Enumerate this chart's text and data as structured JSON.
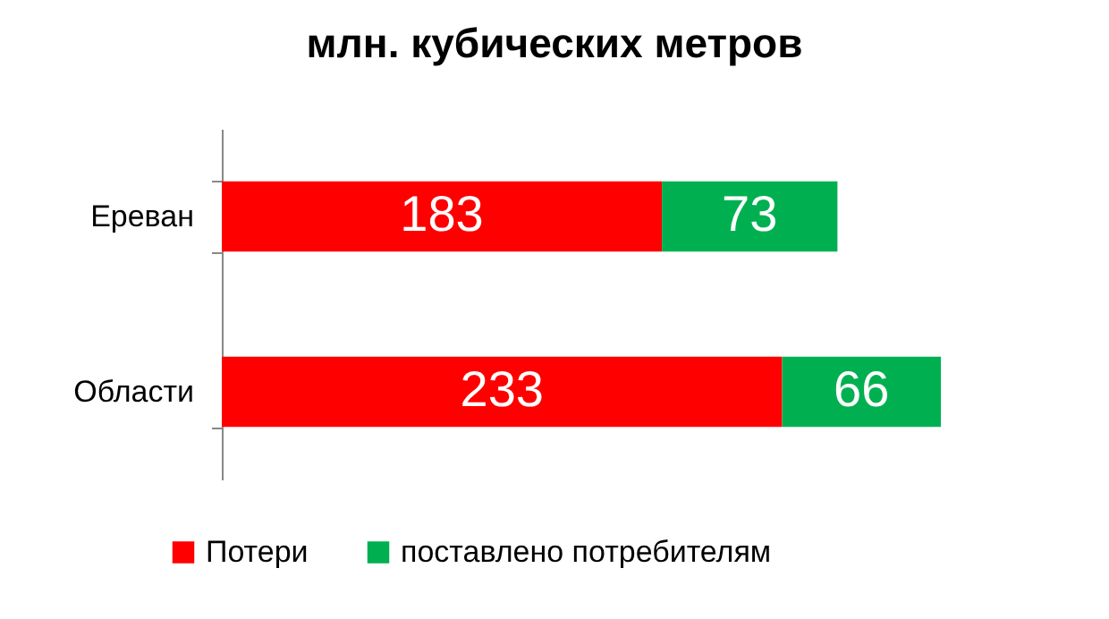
{
  "chart_data": {
    "type": "bar",
    "orientation": "horizontal",
    "stacked": true,
    "title": "млн. кубических метров",
    "categories": [
      "Ереван",
      "Области"
    ],
    "series": [
      {
        "name": "Потери",
        "color": "#ff0000",
        "values": [
          183,
          233
        ]
      },
      {
        "name": "поставлено потребителям",
        "color": "#00b050",
        "values": [
          73,
          66
        ]
      }
    ],
    "data_labels": true,
    "legend": "bottom",
    "grid": false
  }
}
